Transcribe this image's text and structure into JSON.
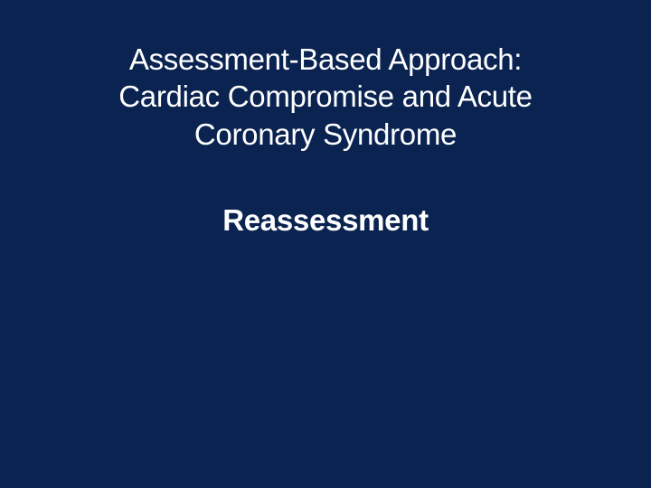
{
  "slide": {
    "background_color": "#0a2351",
    "text_color": "#ffffff",
    "title": {
      "line1": "Assessment-Based Approach:",
      "line2": "Cardiac Compromise and Acute",
      "line3": "Coronary Syndrome",
      "fontsize": 33,
      "fontweight": 400
    },
    "subtitle": {
      "text": "Reassessment",
      "fontsize": 33,
      "fontweight": 700
    }
  }
}
